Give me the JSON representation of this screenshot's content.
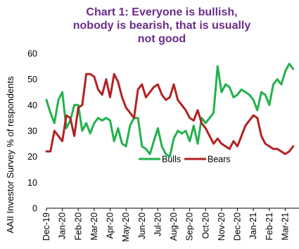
{
  "chart_data": {
    "type": "line",
    "title_lines": [
      "Chart 1: Everyone is bullish,",
      "nobody is bearish, that is usually",
      "not good"
    ],
    "ylabel": "AAII Investor Survey % of respondents",
    "ylim": [
      0,
      60
    ],
    "yticks": [
      0,
      10,
      20,
      30,
      40,
      50,
      60
    ],
    "x_tick_labels": [
      "Dec-19",
      "Jan-20",
      "Feb-20",
      "Mar-20",
      "Apr-20",
      "May-20",
      "Jun-20",
      "Jul-20",
      "Aug-20",
      "Sep-20",
      "Oct-20",
      "Nov-20",
      "Dec-20",
      "Jan-21",
      "Feb-21",
      "Mar-21"
    ],
    "x_range": [
      0,
      15.6
    ],
    "legend_placement": "center",
    "series": [
      {
        "name": "Bulls",
        "color": "#22b14c",
        "x": [
          0,
          0.25,
          0.5,
          0.75,
          1,
          1.25,
          1.5,
          1.75,
          2,
          2.25,
          2.5,
          2.75,
          3,
          3.25,
          3.5,
          3.75,
          4,
          4.25,
          4.5,
          4.75,
          5,
          5.25,
          5.5,
          5.75,
          6,
          6.25,
          6.5,
          6.75,
          7,
          7.25,
          7.5,
          7.75,
          8,
          8.25,
          8.5,
          8.75,
          9,
          9.25,
          9.5,
          9.75,
          10,
          10.25,
          10.5,
          10.75,
          11,
          11.25,
          11.5,
          11.75,
          12,
          12.25,
          12.5,
          12.75,
          13,
          13.25,
          13.5,
          13.75,
          14,
          14.25,
          14.5,
          14.75,
          15,
          15.25,
          15.5
        ],
        "values": [
          42,
          37,
          33,
          42,
          45,
          31,
          34,
          40,
          40,
          30,
          33,
          29,
          33,
          35,
          34,
          35,
          34,
          26,
          31,
          25,
          24,
          32,
          35,
          35,
          24,
          23,
          21,
          26,
          31,
          24,
          21,
          20,
          27,
          30,
          29,
          30,
          26,
          32,
          25,
          35,
          33,
          35,
          37,
          55,
          45,
          48,
          47,
          43,
          44,
          46,
          45,
          44,
          42,
          38,
          45,
          44,
          40,
          48,
          50,
          48,
          53,
          56,
          54
        ]
      },
      {
        "name": "Bears",
        "color": "#b22222",
        "x": [
          0,
          0.25,
          0.5,
          0.75,
          1,
          1.25,
          1.5,
          1.75,
          2,
          2.25,
          2.5,
          2.75,
          3,
          3.25,
          3.5,
          3.75,
          4,
          4.25,
          4.5,
          4.75,
          5,
          5.25,
          5.5,
          5.75,
          6,
          6.25,
          6.5,
          6.75,
          7,
          7.25,
          7.5,
          7.75,
          8,
          8.25,
          8.5,
          8.75,
          9,
          9.25,
          9.5,
          9.75,
          10,
          10.25,
          10.5,
          10.75,
          11,
          11.25,
          11.5,
          11.75,
          12,
          12.25,
          12.5,
          12.75,
          13,
          13.25,
          13.5,
          13.75,
          14,
          14.25,
          14.5,
          14.75,
          15,
          15.25,
          15.5
        ],
        "values": [
          22,
          22,
          30,
          28,
          26,
          36,
          35,
          28,
          39,
          40,
          52,
          52,
          51,
          46,
          44,
          50,
          43,
          52,
          49,
          43,
          39,
          37,
          35,
          46,
          48,
          43,
          45,
          47,
          48,
          44,
          42,
          43,
          48,
          42,
          40,
          38,
          35,
          34,
          38,
          33,
          31,
          28,
          25,
          27,
          25,
          24,
          23,
          26,
          24,
          28,
          32,
          34,
          36,
          35,
          28,
          25,
          24,
          23,
          23,
          22,
          21,
          22,
          24
        ]
      }
    ]
  }
}
